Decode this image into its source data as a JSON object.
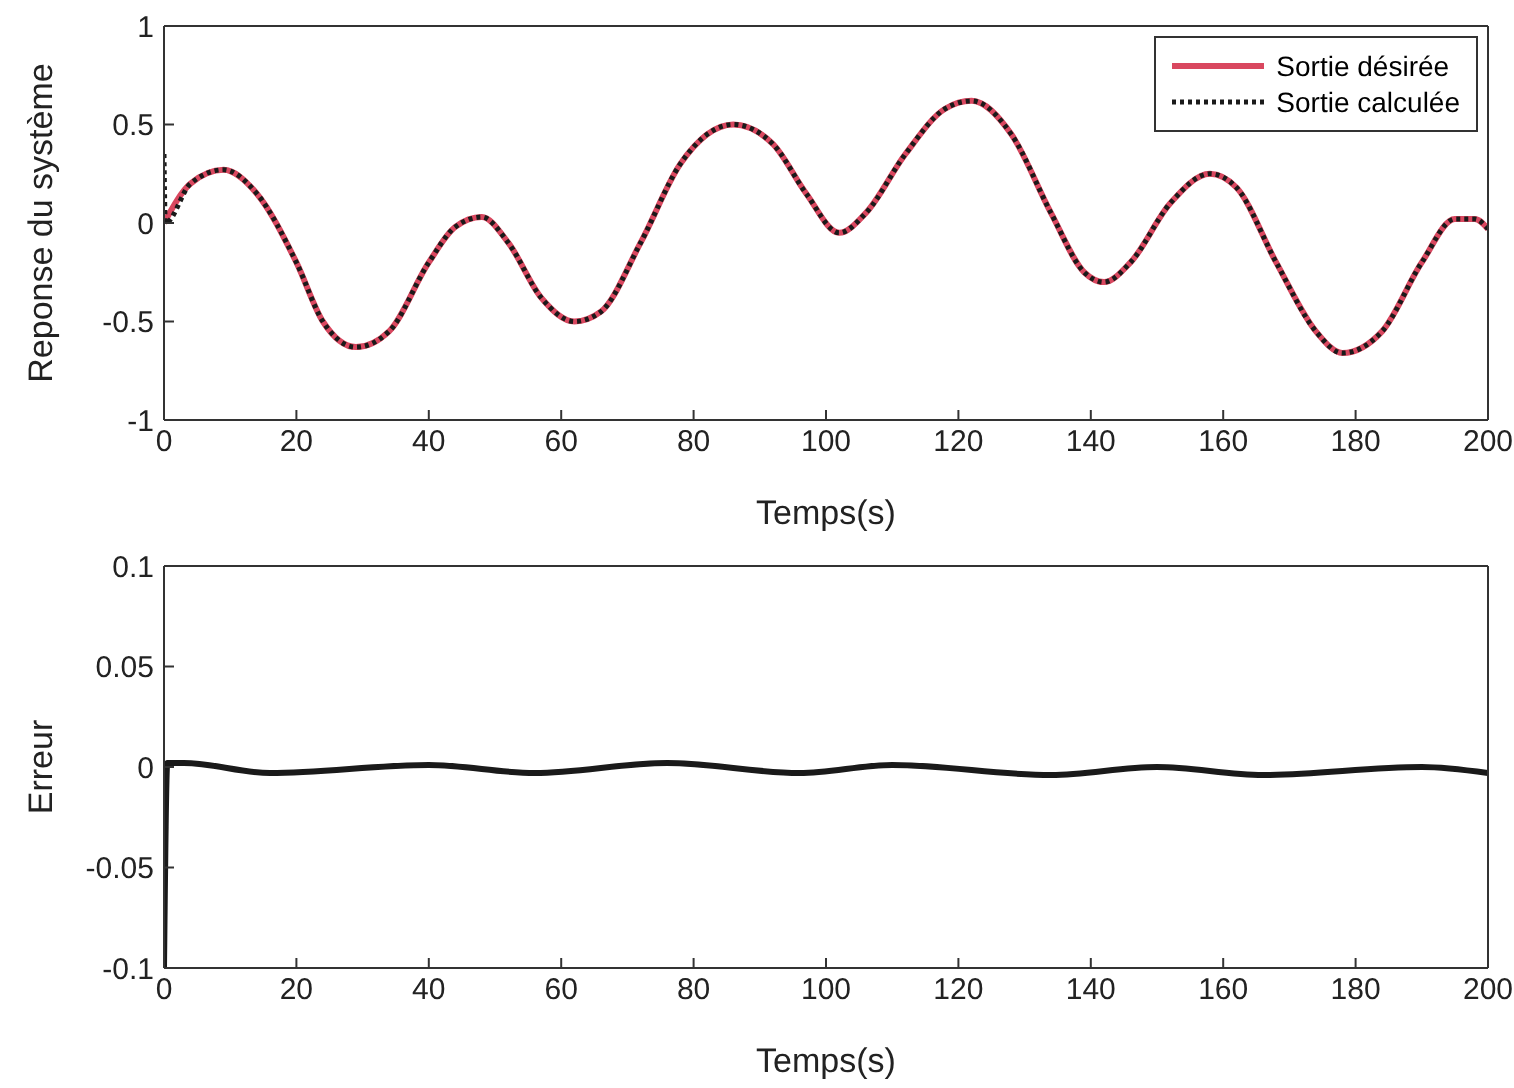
{
  "chart_data": [
    {
      "type": "line",
      "ylabel": "Reponse du système",
      "xlabel": "Temps(s)",
      "xlim": [
        0,
        200
      ],
      "xticks": [
        0,
        20,
        40,
        60,
        80,
        100,
        120,
        140,
        160,
        180,
        200
      ],
      "ylim": [
        -1,
        1
      ],
      "yticks": [
        -1,
        -0.5,
        0,
        0.5,
        1
      ],
      "legend": "top right",
      "series": [
        {
          "name": "Sortie désirée",
          "color": "#d9475f",
          "line_style": "solid",
          "x": [
            0,
            4,
            9,
            14,
            20,
            24,
            29,
            34,
            40,
            44,
            48,
            52,
            57,
            62,
            66,
            72,
            78,
            86,
            92,
            97,
            102,
            106,
            112,
            118,
            122,
            128,
            134,
            139,
            142,
            146,
            152,
            158,
            162,
            168,
            174,
            178,
            184,
            190,
            195,
            198,
            200
          ],
          "values": [
            0,
            0.2,
            0.27,
            0.15,
            -0.2,
            -0.5,
            -0.63,
            -0.55,
            -0.2,
            -0.02,
            0.03,
            -0.1,
            -0.38,
            -0.5,
            -0.45,
            -0.1,
            0.3,
            0.5,
            0.4,
            0.15,
            -0.05,
            0.05,
            0.35,
            0.58,
            0.62,
            0.45,
            0.05,
            -0.25,
            -0.3,
            -0.2,
            0.1,
            0.25,
            0.18,
            -0.2,
            -0.55,
            -0.66,
            -0.55,
            -0.2,
            0.02,
            0.02,
            -0.03
          ]
        },
        {
          "name": "Sortie calculée",
          "color": "#1a1a1a",
          "line_style": "dotted",
          "x": [
            0,
            0.2,
            4,
            9,
            14,
            20,
            24,
            29,
            34,
            40,
            44,
            48,
            52,
            57,
            62,
            66,
            72,
            78,
            86,
            92,
            97,
            102,
            106,
            112,
            118,
            122,
            128,
            134,
            139,
            142,
            146,
            152,
            158,
            162,
            168,
            174,
            178,
            184,
            190,
            195,
            198,
            200
          ],
          "values": [
            0.35,
            0,
            0.2,
            0.27,
            0.15,
            -0.2,
            -0.5,
            -0.63,
            -0.55,
            -0.2,
            -0.02,
            0.03,
            -0.1,
            -0.38,
            -0.5,
            -0.45,
            -0.1,
            0.3,
            0.5,
            0.4,
            0.15,
            -0.05,
            0.05,
            0.35,
            0.58,
            0.62,
            0.45,
            0.05,
            -0.25,
            -0.3,
            -0.2,
            0.1,
            0.25,
            0.18,
            -0.2,
            -0.55,
            -0.66,
            -0.55,
            -0.2,
            0.02,
            0.02,
            -0.03
          ]
        }
      ]
    },
    {
      "type": "line",
      "ylabel": "Erreur",
      "xlabel": "Temps(s)",
      "xlim": [
        0,
        200
      ],
      "xticks": [
        0,
        20,
        40,
        60,
        80,
        100,
        120,
        140,
        160,
        180,
        200
      ],
      "ylim": [
        -0.1,
        0.1
      ],
      "yticks": [
        -0.1,
        -0.05,
        0,
        0.05,
        0.1
      ],
      "legend": false,
      "series": [
        {
          "color": "#1a1a1a",
          "line_style": "solid",
          "x": [
            0,
            0.5,
            3,
            16,
            40,
            56,
            76,
            96,
            110,
            134,
            150,
            166,
            190,
            200
          ],
          "values": [
            -0.1,
            0.002,
            0.002,
            -0.003,
            0.001,
            -0.003,
            0.002,
            -0.003,
            0.001,
            -0.004,
            0,
            -0.004,
            0,
            -0.003
          ]
        }
      ]
    }
  ]
}
